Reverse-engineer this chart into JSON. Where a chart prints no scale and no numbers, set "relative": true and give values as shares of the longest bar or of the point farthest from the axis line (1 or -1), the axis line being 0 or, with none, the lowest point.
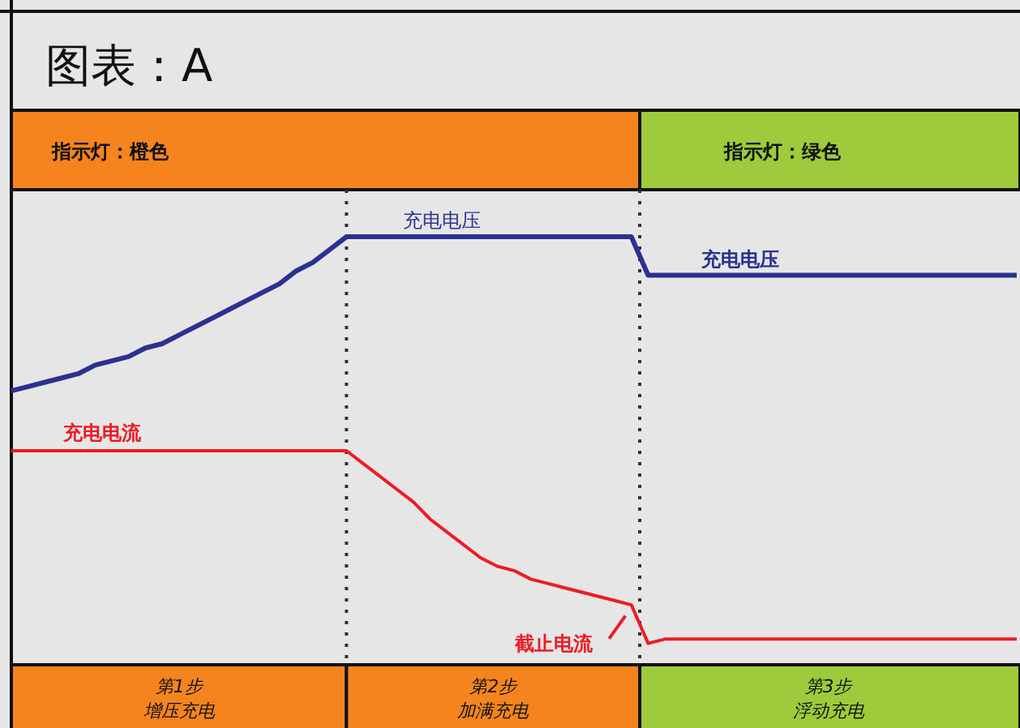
{
  "chart_data": {
    "type": "line",
    "title": "图表：A",
    "relative": true,
    "line_style": "solid",
    "categories": [
      null,
      null,
      null,
      null,
      null,
      null,
      null,
      null,
      null,
      null,
      null,
      null,
      null,
      null,
      null,
      null,
      null,
      null,
      null,
      null,
      null,
      null,
      null,
      null,
      null,
      null,
      null,
      null,
      null,
      null,
      null,
      null,
      null,
      null,
      null,
      null,
      null,
      null,
      null,
      null,
      null,
      null,
      null,
      null,
      null,
      null,
      null,
      null,
      null,
      null,
      null,
      null,
      null,
      null,
      null,
      null,
      null,
      null,
      null,
      null,
      null
    ],
    "series": [
      {
        "name": "充电电压",
        "color": "#2b3190",
        "values": [
          0.64,
          0.65,
          0.66,
          0.67,
          0.68,
          0.7,
          0.71,
          0.72,
          0.74,
          0.75,
          0.77,
          0.79,
          0.81,
          0.83,
          0.85,
          0.87,
          0.89,
          0.92,
          0.94,
          0.97,
          1,
          1,
          1,
          1,
          1,
          1,
          1,
          1,
          1,
          1,
          1,
          1,
          1,
          1,
          1,
          1,
          1,
          1,
          0.91,
          0.91,
          0.91,
          0.91,
          0.91,
          0.91,
          0.91,
          0.91,
          0.91,
          0.91,
          0.91,
          0.91,
          0.91,
          0.91,
          0.91,
          0.91,
          0.91,
          0.91,
          0.91,
          0.91,
          0.91,
          0.91,
          0.91
        ]
      },
      {
        "name": "充电电流",
        "color": "#ed1c24",
        "values": [
          0.5,
          0.5,
          0.5,
          0.5,
          0.5,
          0.5,
          0.5,
          0.5,
          0.5,
          0.5,
          0.5,
          0.5,
          0.5,
          0.5,
          0.5,
          0.5,
          0.5,
          0.5,
          0.5,
          0.5,
          0.5,
          0.47,
          0.44,
          0.41,
          0.38,
          0.34,
          0.31,
          0.28,
          0.25,
          0.23,
          0.22,
          0.2,
          0.19,
          0.18,
          0.17,
          0.16,
          0.15,
          0.14,
          0.05,
          0.06,
          0.06,
          0.06,
          0.06,
          0.06,
          0.06,
          0.06,
          0.06,
          0.06,
          0.06,
          0.06,
          0.06,
          0.06,
          0.06,
          0.06,
          0.06,
          0.06,
          0.06,
          0.06,
          0.06,
          0.06,
          0.06
        ]
      }
    ],
    "annotations": [
      "充电电压",
      "截止电流",
      "指示灯：橙色",
      "指示灯：绿色",
      "第1步",
      "增压充电",
      "第2步",
      "加满充电",
      "第3步",
      "浮动充电"
    ]
  }
}
